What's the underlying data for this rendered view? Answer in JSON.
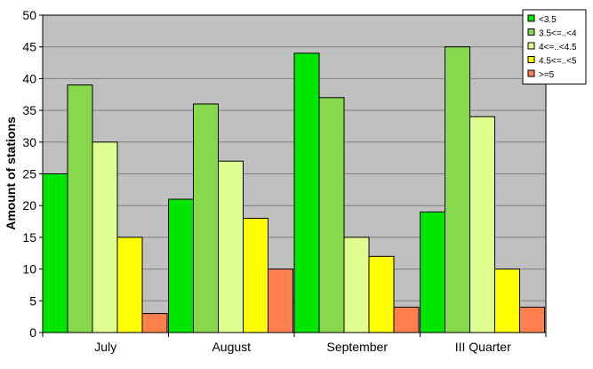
{
  "chart_data": {
    "type": "bar",
    "title": "",
    "xlabel": "",
    "ylabel": "Amount of stations",
    "ylim": [
      0,
      50
    ],
    "yticks": [
      0,
      5,
      10,
      15,
      20,
      25,
      30,
      35,
      40,
      45,
      50
    ],
    "grid": true,
    "legend_position": "top-right",
    "plot_background": "#c0c0c0",
    "categories": [
      "July",
      "August",
      "September",
      "III Quarter"
    ],
    "series": [
      {
        "name": "<3.5",
        "color": "#00e600",
        "values": [
          25,
          21,
          44,
          19
        ]
      },
      {
        "name": "3.5<=..<4",
        "color": "#88d84e",
        "values": [
          39,
          36,
          37,
          45
        ]
      },
      {
        "name": "4<=..<4.5",
        "color": "#e0ff90",
        "values": [
          30,
          27,
          15,
          34
        ]
      },
      {
        "name": "4.5<=..<5",
        "color": "#ffff00",
        "values": [
          15,
          18,
          12,
          10
        ]
      },
      {
        "name": ">=5",
        "color": "#ff7f4f",
        "values": [
          3,
          10,
          4,
          4
        ]
      }
    ]
  }
}
